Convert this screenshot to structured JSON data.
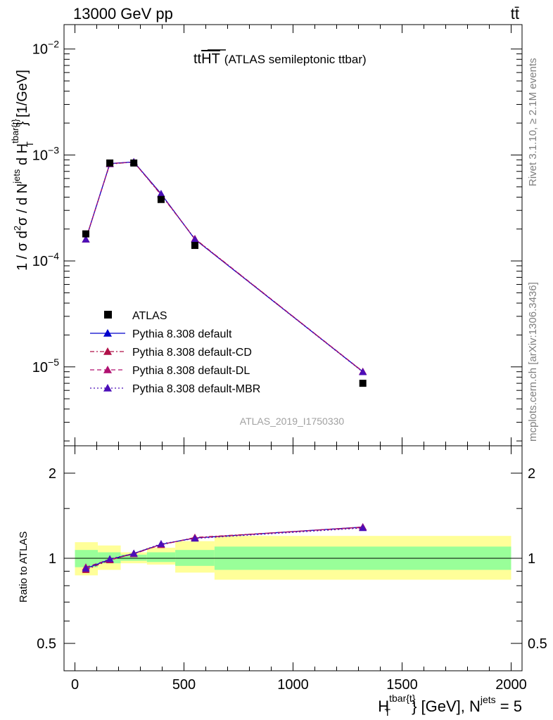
{
  "header": {
    "energy_label": "13000 GeV pp",
    "process_label": "tt̄"
  },
  "top_panel": {
    "title_main": "tt",
    "title_overline": "HT",
    "title_sub": "(ATLAS semileptonic ttbar)",
    "ylabel_parts": [
      "1 / σ d",
      "2",
      "σ / d N",
      "jets",
      " d H",
      "tbar{t}",
      "T",
      "} [1/GeV]"
    ],
    "analysis_tag": "ATLAS_2019_I1750330"
  },
  "bottom_panel": {
    "ylabel": "Ratio to ATLAS",
    "xlabel_parts": [
      "H",
      "tbar{t}",
      "T",
      "} [GeV], N",
      "jets",
      " = 5"
    ]
  },
  "side_labels": {
    "rivet": "Rivet 3.1.10, ≥ 2.1M events",
    "mcplots": "mcplots.cern.ch [arXiv:1306.3436]"
  },
  "legend": {
    "entries": [
      {
        "label": "ATLAS",
        "color": "#000000",
        "marker": "square",
        "line": "none"
      },
      {
        "label": "Pythia 8.308 default",
        "color": "#0000cc",
        "marker": "triangle",
        "line": "solid"
      },
      {
        "label": "Pythia 8.308 default-CD",
        "color": "#b01048",
        "marker": "triangle",
        "line": "dashdot"
      },
      {
        "label": "Pythia 8.308 default-DL",
        "color": "#b01070",
        "marker": "triangle",
        "line": "dashed"
      },
      {
        "label": "Pythia 8.308 default-MBR",
        "color": "#4b0eb8",
        "marker": "triangle",
        "line": "dotted"
      }
    ]
  },
  "chart_data": [
    {
      "type": "scatter",
      "panel": "main",
      "yscale": "log",
      "xlim": [
        -50,
        2050
      ],
      "ylim": [
        1.8e-06,
        0.017
      ],
      "y_ticks": [
        {
          "value": 1e-05,
          "base": "10",
          "exp": "−5"
        },
        {
          "value": 0.0001,
          "base": "10",
          "exp": "−4"
        },
        {
          "value": 0.001,
          "base": "10",
          "exp": "−3"
        },
        {
          "value": 0.01,
          "base": "10",
          "exp": "−2"
        }
      ],
      "data": {
        "x": [
          50,
          160,
          270,
          395,
          550,
          1320
        ],
        "y": [
          0.00018,
          0.00084,
          0.00084,
          0.00038,
          0.00014,
          7e-06
        ]
      },
      "series": [
        {
          "name": "Pythia 8.308 default",
          "x": [
            50,
            160,
            270,
            395,
            550,
            1320
          ],
          "y": [
            0.00016,
            0.00083,
            0.00086,
            0.00043,
            0.00016,
            9e-06
          ]
        },
        {
          "name": "Pythia 8.308 default-CD",
          "x": [
            50,
            160,
            270,
            395,
            550,
            1320
          ],
          "y": [
            0.00016,
            0.00082,
            0.00086,
            0.00042,
            0.000162,
            9e-06
          ]
        },
        {
          "name": "Pythia 8.308 default-DL",
          "x": [
            50,
            160,
            270,
            395,
            550,
            1320
          ],
          "y": [
            0.00016,
            0.00083,
            0.000855,
            0.000425,
            0.000161,
            9.05e-06
          ]
        },
        {
          "name": "Pythia 8.308 default-MBR",
          "x": [
            50,
            160,
            270,
            395,
            550,
            1320
          ],
          "y": [
            0.00016,
            0.000825,
            0.00086,
            0.00043,
            0.00016,
            8.95e-06
          ]
        }
      ]
    },
    {
      "type": "line",
      "panel": "ratio",
      "yscale": "log",
      "xlim": [
        -50,
        2050
      ],
      "ylim": [
        0.4,
        2.5
      ],
      "x_ticks": [
        0,
        500,
        1000,
        1500,
        2000
      ],
      "y_ticks": [
        0.5,
        1,
        2
      ],
      "bands": [
        {
          "xlo": 0,
          "xhi": 105,
          "inner": [
            0.93,
            1.07
          ],
          "outer": [
            0.87,
            1.14
          ]
        },
        {
          "xlo": 105,
          "xhi": 210,
          "inner": [
            0.96,
            1.05
          ],
          "outer": [
            0.91,
            1.11
          ]
        },
        {
          "xlo": 210,
          "xhi": 330,
          "inner": [
            0.98,
            1.03
          ],
          "outer": [
            0.96,
            1.05
          ]
        },
        {
          "xlo": 330,
          "xhi": 460,
          "inner": [
            0.97,
            1.05
          ],
          "outer": [
            0.95,
            1.09
          ]
        },
        {
          "xlo": 460,
          "xhi": 640,
          "inner": [
            0.94,
            1.07
          ],
          "outer": [
            0.89,
            1.15
          ]
        },
        {
          "xlo": 640,
          "xhi": 2000,
          "inner": [
            0.91,
            1.1
          ],
          "outer": [
            0.84,
            1.2
          ]
        }
      ],
      "series": [
        {
          "name": "Pythia 8.308 default",
          "x": [
            50,
            160,
            270,
            395,
            550,
            1320
          ],
          "y": [
            0.92,
            0.99,
            1.04,
            1.12,
            1.18,
            1.29
          ]
        },
        {
          "name": "Pythia 8.308 default-CD",
          "x": [
            50,
            160,
            270,
            395,
            550,
            1320
          ],
          "y": [
            0.91,
            0.985,
            1.04,
            1.115,
            1.185,
            1.285
          ]
        },
        {
          "name": "Pythia 8.308 default-DL",
          "x": [
            50,
            160,
            270,
            395,
            550,
            1320
          ],
          "y": [
            0.93,
            0.99,
            1.035,
            1.12,
            1.18,
            1.29
          ]
        },
        {
          "name": "Pythia 8.308 default-MBR",
          "x": [
            50,
            160,
            270,
            395,
            550,
            1320
          ],
          "y": [
            0.92,
            0.995,
            1.04,
            1.125,
            1.175,
            1.28
          ]
        }
      ]
    }
  ]
}
